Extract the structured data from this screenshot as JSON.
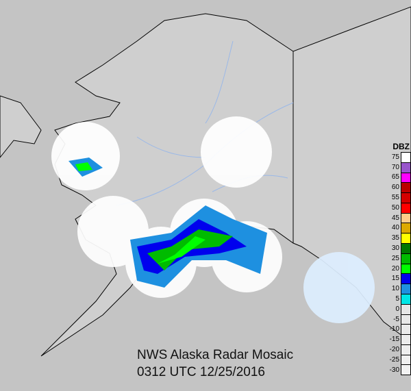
{
  "title": "NWS Alaska Radar Mosaic",
  "timestamp": "0312 UTC 12/25/2016",
  "legend": {
    "unit": "DBZ",
    "entries": [
      {
        "label": "75",
        "color": "#ffffff"
      },
      {
        "label": "70",
        "color": "#9955cc"
      },
      {
        "label": "65",
        "color": "#ff00ff"
      },
      {
        "label": "60",
        "color": "#bb0000"
      },
      {
        "label": "55",
        "color": "#d40000"
      },
      {
        "label": "50",
        "color": "#ff0000"
      },
      {
        "label": "45",
        "color": "#ffcc88"
      },
      {
        "label": "40",
        "color": "#ddaa00"
      },
      {
        "label": "35",
        "color": "#ffff00"
      },
      {
        "label": "30",
        "color": "#007700"
      },
      {
        "label": "25",
        "color": "#00bb00"
      },
      {
        "label": "20",
        "color": "#00ff00"
      },
      {
        "label": "15",
        "color": "#0000ee"
      },
      {
        "label": "10",
        "color": "#1e90e0"
      },
      {
        "label": "5",
        "color": "#00e6e6"
      },
      {
        "label": "0",
        "color": "#e6e6e6"
      },
      {
        "label": "-5",
        "color": "#e8e8e8"
      },
      {
        "label": "-10",
        "color": "#eaeaea"
      },
      {
        "label": "-15",
        "color": "#ececec"
      },
      {
        "label": "-20",
        "color": "#eeeeee"
      },
      {
        "label": "-25",
        "color": "#f0f0f0"
      },
      {
        "label": "-30",
        "color": "#f2f2f2"
      }
    ]
  },
  "colors": {
    "ocean": "#c4c4c4",
    "land": "#cfcfcf",
    "radar_coverage": "#ffffff",
    "rivers": "#9ab8e8",
    "coastline": "#000000"
  }
}
